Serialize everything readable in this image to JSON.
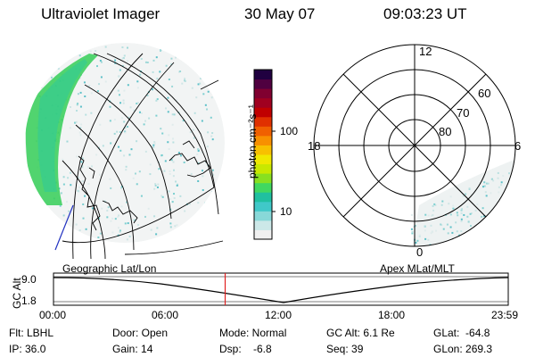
{
  "header": {
    "title": "Ultraviolet Imager",
    "date": "30 May 07",
    "time": "09:03:23 UT"
  },
  "colorbar": {
    "unit": "photon cm⁻²s⁻¹",
    "ticks": [
      {
        "value": 100,
        "label": "100"
      },
      {
        "value": 10,
        "label": "10"
      }
    ],
    "colors": [
      "#f0f0f0",
      "#cce8e8",
      "#88d8d8",
      "#40c8c8",
      "#20c0a0",
      "#40d860",
      "#88e020",
      "#c8e800",
      "#f0e800",
      "#f8c000",
      "#f89000",
      "#f06000",
      "#e03000",
      "#c00000",
      "#a00020",
      "#800030",
      "#500040",
      "#200040"
    ]
  },
  "left_panel": {
    "caption": "Geographic Lat/Lon"
  },
  "right_panel": {
    "caption": "Apex MLat/MLT",
    "mlt_labels": [
      {
        "label": "12",
        "pos": "top"
      },
      {
        "label": "18",
        "pos": "left"
      },
      {
        "label": "6",
        "pos": "right"
      },
      {
        "label": "0",
        "pos": "bottom"
      }
    ],
    "mlat_labels": [
      "60",
      "70",
      "80"
    ]
  },
  "altitude_plot": {
    "ylabel": "GC Alt",
    "yticks": [
      "9.0",
      "1.8"
    ],
    "xticks": [
      "00:00",
      "06:00",
      "12:00",
      "18:00",
      "23:59"
    ],
    "current_time_hours": 9.06
  },
  "info": {
    "flt": "Flt: LBHL",
    "ip": "IP: 36.0",
    "door": "Door: Open",
    "gain": "Gain: 14",
    "mode": "Mode: Normal",
    "dsp": "Dsp:    -6.8",
    "gc_alt": "GC Alt: 6.1 Re",
    "seq": "Seq: 39",
    "glat": "GLat:  -64.8",
    "glon": "GLon: 269.3"
  }
}
